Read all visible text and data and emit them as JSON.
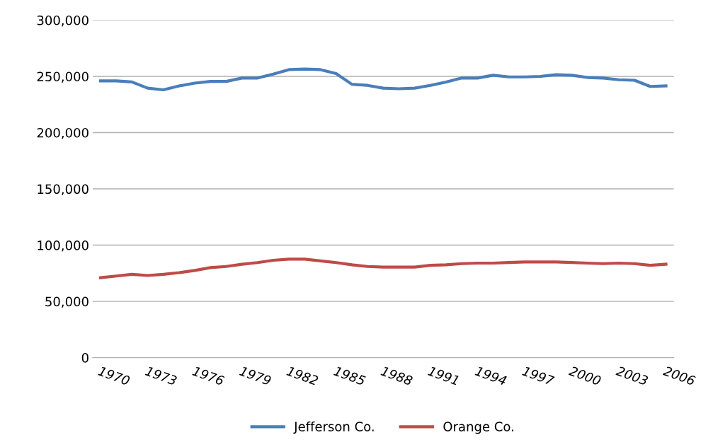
{
  "chart_data": {
    "type": "line",
    "categories": [
      "1970",
      null,
      null,
      "1973",
      null,
      null,
      "1976",
      null,
      null,
      "1979",
      null,
      null,
      "1982",
      null,
      null,
      "1985",
      null,
      null,
      "1988",
      null,
      null,
      "1991",
      null,
      null,
      "1994",
      null,
      null,
      "1997",
      null,
      null,
      "2000",
      null,
      null,
      "2003",
      null,
      null,
      "2006"
    ],
    "series": [
      {
        "name": "Jefferson Co.",
        "color": "#4a7ebb",
        "values": [
          246000,
          246000,
          245000,
          239500,
          238000,
          241500,
          244000,
          245500,
          245500,
          248500,
          248500,
          252000,
          256000,
          256500,
          256000,
          252500,
          243000,
          242000,
          239500,
          239000,
          239500,
          242000,
          245000,
          248500,
          248500,
          251000,
          249500,
          249500,
          250000,
          251500,
          251000,
          249000,
          248500,
          247000,
          246500,
          241000,
          241500
        ]
      },
      {
        "name": "Orange Co.",
        "color": "#be4b48",
        "values": [
          71000,
          72500,
          74000,
          73000,
          74000,
          75500,
          77500,
          80000,
          81000,
          83000,
          84500,
          86500,
          87500,
          87500,
          86000,
          84500,
          82500,
          81000,
          80500,
          80500,
          80500,
          82000,
          82500,
          83500,
          84000,
          84000,
          84500,
          85000,
          85000,
          85000,
          84500,
          84000,
          83500,
          84000,
          83500,
          82000,
          83000
        ]
      }
    ],
    "ylim": [
      0,
      300000
    ],
    "yticks": [
      {
        "value": 0,
        "label": "0"
      },
      {
        "value": 50000,
        "label": "50,000"
      },
      {
        "value": 100000,
        "label": "100,000"
      },
      {
        "value": 150000,
        "label": "150,000"
      },
      {
        "value": 200000,
        "label": "200,000"
      },
      {
        "value": 250000,
        "label": "250,000"
      },
      {
        "value": 300000,
        "label": "300,000"
      }
    ],
    "grid": "y",
    "legend": "bottom"
  }
}
